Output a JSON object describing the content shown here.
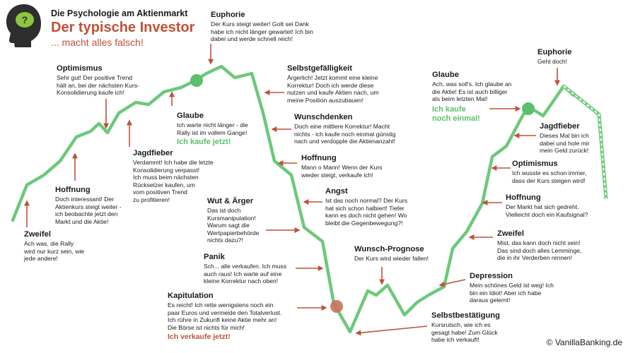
{
  "header": {
    "title": "Die Psychologie am Aktienmarkt",
    "headline": "Der typische Investor",
    "subline": "... macht alles falsch!"
  },
  "copyright": "© VanillaBanking.de",
  "colors": {
    "line": "#6cc97a",
    "arrow": "#c0513a",
    "accent_green": "#5cbf6a",
    "accent_red": "#c0513a",
    "head": "#2e2e2e"
  },
  "phases": {
    "zweifel1": {
      "title": "Zweifel",
      "text": [
        "Ach was, die Rally",
        "wird nur kurz sein, wie",
        "jede andere!"
      ]
    },
    "hoffnung1": {
      "title": "Hoffnung",
      "text": [
        "Doch interessant! Der",
        "Aktienkurs steigt weiter -",
        "ich beobachte jetzt den",
        "Markt und die Aktie!"
      ]
    },
    "optimismus1": {
      "title": "Optimismus",
      "text": [
        "Sehr gut! Der positive Trend",
        "hält an, bei der nächsten Kurs-",
        "Konsolidierung kaufe ich!"
      ]
    },
    "jagdfieber1": {
      "title": "Jagdfieber",
      "text": [
        "Verdammt! Ich habe die letzte",
        "Konsolidierung verpasst!",
        "Ich muss beim nächsten",
        "Rücksetzer kaufen, um",
        "vom positiven Trend",
        "zu profitieren!"
      ]
    },
    "glaube1": {
      "title": "Glaube",
      "text": [
        "Ich warte nicht länger - die",
        "Rally ist im vollem Gange!"
      ],
      "cta": "Ich kaufe jetzt!"
    },
    "euphorie1": {
      "title": "Euphorie",
      "text": [
        "Der Kurs steigt weiter! Gott sei Dank",
        "habe ich nicht länger gewartet! Ich bin",
        "dabei und werde schnell reich!"
      ]
    },
    "selbstgefaelligkeit": {
      "title": "Selbstgefälligkeit",
      "text": [
        "Ärgerlich! Jetzt kommt eine kleine",
        "Korrektur! Doch ich werde diese",
        "nutzen und kaufe Aktien nach, um",
        "meine Position auszubauen!"
      ]
    },
    "wunschdenken": {
      "title": "Wunschdenken",
      "text": [
        "Doch eine mittlere Korrektur! Macht",
        "nichts - ich kaufe noch einmal günstig",
        "nach und verdopple die Aktienanzahl!"
      ]
    },
    "hoffnung2": {
      "title": "Hoffnung",
      "text": [
        "Mann o Mann! Wenn der Kurs",
        "wieder steigt, verkaufe ich!"
      ]
    },
    "angst": {
      "title": "Angst",
      "text": [
        "Ist das noch normal? Der Kurs",
        "hat sich schon halbiert! Tiefer",
        "kann es doch nicht gehen! Wo",
        "bleibt die Gegenbewegung?!"
      ]
    },
    "wut": {
      "title": "Wut & Ärger",
      "text": [
        "Das ist doch",
        "Kursmanipulation!",
        "Warum sagt die",
        "Wertpapierbehörde",
        "nichts dazu?!"
      ]
    },
    "panik": {
      "title": "Panik",
      "text": [
        "Sch... alle verkaufen. Ich muss",
        "auch raus! Ich warte auf eine",
        "kleine Korrektur nach oben!"
      ]
    },
    "kapitulation": {
      "title": "Kapitulation",
      "text": [
        "Es reicht! Ich rette wenigstens noch ein",
        "paar Euros und vermeide den Totalverlust.",
        "Ich rühre in Zukunft keine Aktie mehr an!",
        "Die Börse ist nichts für mich!"
      ],
      "cta": "Ich verkaufe jetzt!"
    },
    "wunsch_prognose": {
      "title": "Wunsch-Prognose",
      "text": [
        "Der Kurs wird wieder fallen!"
      ]
    },
    "selbstbestaetigung": {
      "title": "Selbstbestätigung",
      "text": [
        "Kursrutsch, wie ich es",
        "gesagt habe! Zum Glück",
        "habe ich verkauft!"
      ]
    },
    "depression": {
      "title": "Depression",
      "text": [
        "Mein schönes Geld ist weg! Ich",
        "bin ein Idiot! Aber ich habe",
        "daraus gelernt!"
      ]
    },
    "zweifel2": {
      "title": "Zweifel",
      "text": [
        "Mist, das kann doch nicht sein!",
        "Das sind doch alles Lemminge,",
        "die in ihr Verderben rennen!"
      ]
    },
    "hoffnung3": {
      "title": "Hoffnung",
      "text": [
        "Der Markt hat sich gedreht.",
        "Vielleicht doch ein Kaufsignal?"
      ]
    },
    "optimismus2": {
      "title": "Optimismus",
      "text": [
        "Ich wusste es schon immer,",
        "dass der Kurs steigen wird!"
      ]
    },
    "jagdfieber2": {
      "title": "Jagdfieber",
      "text": [
        "Dieses Mal bin ich",
        "dabei und hole mir",
        "mein Geld zurück!"
      ]
    },
    "glaube2": {
      "title": "Glaube",
      "text": [
        "Ach, was soll's. Ich glaube an",
        "die Aktie! Es ist auch billiger",
        "als beim letzten Mal!"
      ],
      "cta": [
        "Ich kaufe",
        "noch einmal!"
      ]
    },
    "euphorie2": {
      "title": "Euphorie",
      "text": [
        "Geht doch!"
      ]
    }
  }
}
